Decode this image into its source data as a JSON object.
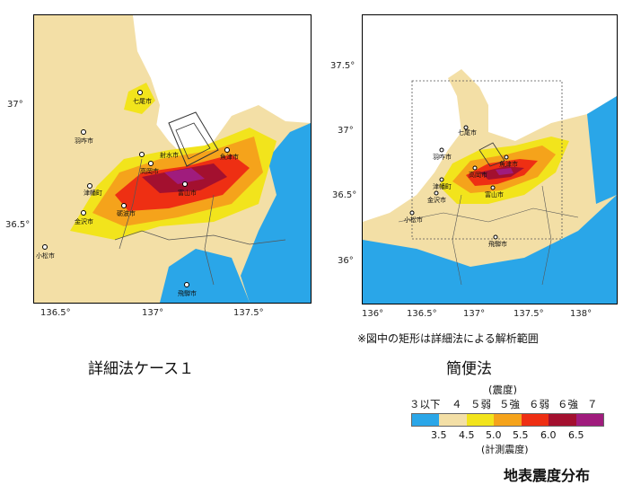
{
  "left_map": {
    "caption": "詳細法ケース１",
    "x_ticks": [
      "136.5°",
      "137°",
      "137.5°"
    ],
    "y_ticks": [
      "37°",
      "36.5°"
    ],
    "cities": [
      "七尾市",
      "羽咋市",
      "高岡市",
      "射水市",
      "魚津市",
      "富山市",
      "津幡町",
      "金沢市",
      "砺波市",
      "小松市",
      "飛騨市"
    ]
  },
  "right_map": {
    "caption": "簡便法",
    "x_ticks": [
      "136°",
      "136.5°",
      "137°",
      "137.5°",
      "138°"
    ],
    "y_ticks": [
      "37.5°",
      "37°",
      "36.5°",
      "36°"
    ],
    "cities": [
      "七尾市",
      "羽咋市",
      "高岡市",
      "魚津市",
      "富山市",
      "津幡町",
      "金沢市",
      "小松市",
      "飛騨市"
    ]
  },
  "note": "※図中の矩形は詳細法による解析範囲",
  "legend": {
    "title_top": "(震度)",
    "classes": [
      "３以下",
      "４",
      "５弱",
      "５強",
      "６弱",
      "６強",
      "７"
    ],
    "colors": [
      "#2aa6e8",
      "#f3dfa6",
      "#f2e41c",
      "#f5a31b",
      "#ee2f13",
      "#a3102f",
      "#a01c7d"
    ],
    "thresholds": [
      "3.5",
      "4.5",
      "5.0",
      "5.5",
      "6.0",
      "6.5"
    ],
    "title_bottom": "(計測震度)"
  },
  "footer_title": "地表震度分布"
}
